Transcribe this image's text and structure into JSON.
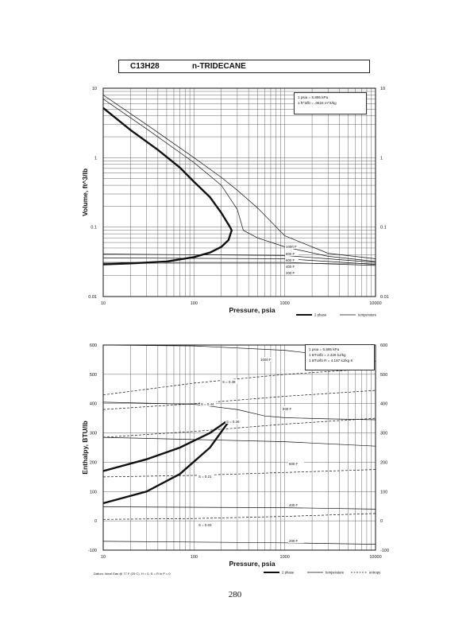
{
  "header": {
    "formula": "C13H28",
    "name": "n-TRIDECANE"
  },
  "page_number": "280",
  "chart_data": [
    {
      "type": "line",
      "xscale": "log",
      "yscale": "log",
      "xlim": [
        10,
        10000
      ],
      "ylim": [
        0.01,
        10
      ],
      "xlabel": "Pressure,  psia",
      "ylabel": "Volume,  ft^3/lb",
      "x_ticks": [
        "10",
        "100",
        "1000",
        "10000"
      ],
      "y_ticks_left": [
        "0.01",
        "0.1",
        "1",
        "10"
      ],
      "y_ticks_right": [
        "0.01",
        "0.1",
        "1",
        "10"
      ],
      "grid": true,
      "legend": {
        "position": "bottom-right",
        "entries": [
          "2 phase",
          "temperature"
        ]
      },
      "info_box": [
        "1 psia  =  6.895 kPa",
        "1 ft^3/lb  =  .0624 m^3/kg"
      ],
      "series": [
        {
          "name": "2 phase",
          "style": "bold",
          "x": [
            10,
            20,
            40,
            70,
            100,
            150,
            200,
            250,
            260,
            240,
            200,
            150,
            100,
            50,
            20,
            10
          ],
          "y": [
            5.2,
            2.5,
            1.3,
            0.72,
            0.45,
            0.27,
            0.16,
            0.1,
            0.09,
            0.065,
            0.052,
            0.043,
            0.037,
            0.032,
            0.03,
            0.029
          ]
        },
        {
          "name": "1000 F",
          "x": [
            10,
            30,
            100,
            200,
            300,
            500,
            1000,
            3000,
            10000
          ],
          "y": [
            8,
            3,
            1.0,
            0.52,
            0.34,
            0.19,
            0.075,
            0.042,
            0.035
          ]
        },
        {
          "name": "800 F",
          "x": [
            10,
            30,
            100,
            200,
            300,
            350,
            500,
            1000,
            3000,
            10000
          ],
          "y": [
            7,
            2.6,
            0.85,
            0.4,
            0.18,
            0.09,
            0.07,
            0.052,
            0.038,
            0.032
          ]
        },
        {
          "name": "600 F",
          "x": [
            10,
            1000,
            3000,
            10000
          ],
          "y": [
            0.041,
            0.039,
            0.035,
            0.031
          ]
        },
        {
          "name": "400 F",
          "x": [
            10,
            1000,
            3000,
            10000
          ],
          "y": [
            0.036,
            0.035,
            0.032,
            0.029
          ]
        },
        {
          "name": "200 F",
          "x": [
            10,
            1000,
            10000
          ],
          "y": [
            0.031,
            0.031,
            0.028
          ]
        }
      ],
      "annotations": [
        "1000 F",
        "800 F",
        "600 F",
        "400 F",
        "200 F"
      ]
    },
    {
      "type": "line",
      "xscale": "log",
      "yscale": "linear",
      "xlim": [
        10,
        10000
      ],
      "ylim": [
        -100,
        600
      ],
      "xlabel": "Pressure,  psia",
      "ylabel": "Enthalpy,  BTU/lb",
      "x_ticks": [
        "10",
        "100",
        "1000",
        "10000"
      ],
      "y_ticks_left": [
        "-100",
        "0",
        "100",
        "200",
        "300",
        "400",
        "500",
        "600"
      ],
      "y_ticks_right": [
        "-100",
        "0",
        "100",
        "200",
        "300",
        "400",
        "500",
        "600"
      ],
      "grid": true,
      "legend": {
        "position": "bottom-right",
        "entries": [
          "2 phase",
          "temperature",
          "entropy"
        ]
      },
      "info_box": [
        "1 psia  =  6.895 kPa",
        "1 BTU/lb  =  2.326 kJ/kg",
        "1 BTU/lb R  =  4.187 kJ/kg K"
      ],
      "datum": "Datum: Ideal Gas @ 77 F (25 C),  H = 0,  S = R ln P = 0",
      "series": [
        {
          "name": "2 phase",
          "style": "bold",
          "x": [
            10,
            30,
            70,
            150,
            230,
            255,
            230,
            150,
            70,
            30,
            10
          ],
          "y": [
            170,
            210,
            250,
            300,
            340,
            345,
            330,
            250,
            160,
            100,
            60
          ]
        },
        {
          "name": "1000 F",
          "x": [
            10,
            100,
            1000,
            3000,
            10000
          ],
          "y": [
            600,
            597,
            582,
            565,
            545
          ]
        },
        {
          "name": "800 F",
          "x": [
            10,
            100,
            300,
            600,
            1000,
            3000,
            10000
          ],
          "y": [
            405,
            398,
            380,
            358,
            352,
            348,
            345
          ]
        },
        {
          "name": "600 F",
          "x": [
            10,
            1000,
            10000
          ],
          "y": [
            285,
            270,
            255
          ]
        },
        {
          "name": "400 F",
          "x": [
            10,
            1000,
            10000
          ],
          "y": [
            48,
            45,
            40
          ]
        },
        {
          "name": "200 F",
          "x": [
            10,
            1000,
            10000
          ],
          "y": [
            -70,
            -75,
            -80
          ]
        },
        {
          "name": "S = 0.48",
          "style": "dashed",
          "x": [
            10,
            100,
            1000,
            10000
          ],
          "y": [
            430,
            470,
            500,
            520
          ]
        },
        {
          "name": "S = 0.44",
          "style": "dashed",
          "x": [
            10,
            100,
            1000,
            10000
          ],
          "y": [
            380,
            400,
            425,
            445
          ]
        },
        {
          "name": "S = 0.36",
          "style": "dashed",
          "x": [
            10,
            100,
            1000,
            10000
          ],
          "y": [
            285,
            305,
            330,
            350
          ]
        },
        {
          "name": "S = 0.21",
          "style": "dashed",
          "x": [
            10,
            100,
            1000,
            10000
          ],
          "y": [
            150,
            155,
            165,
            175
          ]
        },
        {
          "name": "S = 0.03",
          "style": "dashed",
          "x": [
            10,
            100,
            1000,
            10000
          ],
          "y": [
            5,
            8,
            15,
            25
          ]
        }
      ],
      "annotations": [
        "1000 F",
        "S = 0.48",
        "S = 0.44",
        "800 F",
        "S = 0.36",
        "600 F",
        "S = 0.21",
        "400 F",
        "S = 0.03",
        "200 F"
      ]
    }
  ]
}
